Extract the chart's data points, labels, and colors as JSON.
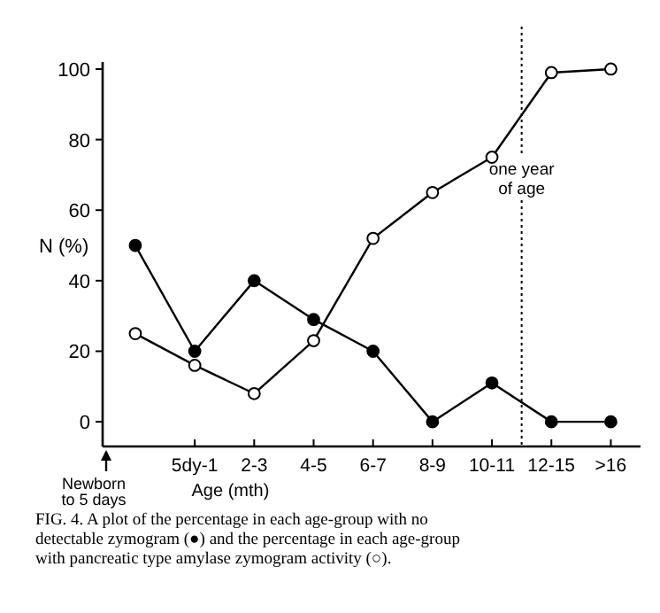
{
  "chart_data": {
    "type": "line",
    "ylabel": "N (%)",
    "xlabel": "Age (mth)",
    "categories": [
      null,
      "5dy-1",
      "2-3",
      "4-5",
      "6-7",
      "8-9",
      "10-11",
      "12-15",
      ">16"
    ],
    "series": [
      {
        "color": "#000000",
        "values": [
          50,
          20,
          40,
          29,
          20,
          0,
          11,
          0,
          0
        ]
      },
      {
        "color": "#000000",
        "values": [
          25,
          16,
          8,
          23,
          52,
          65,
          75,
          99,
          100
        ]
      }
    ],
    "ylim": [
      -7,
      102
    ],
    "yticks": [
      0,
      20,
      40,
      60,
      80,
      100
    ],
    "marker": "circle",
    "line_style": "solid",
    "grid": false,
    "annotations": [
      "Newborn to 5 days",
      "one year of age",
      "FIG. 4. A plot of the percentage in each age-group with no detectable zymogram (●) and the percentage in each age-group with pancreatic type amylase zymogram activity (○)."
    ]
  }
}
